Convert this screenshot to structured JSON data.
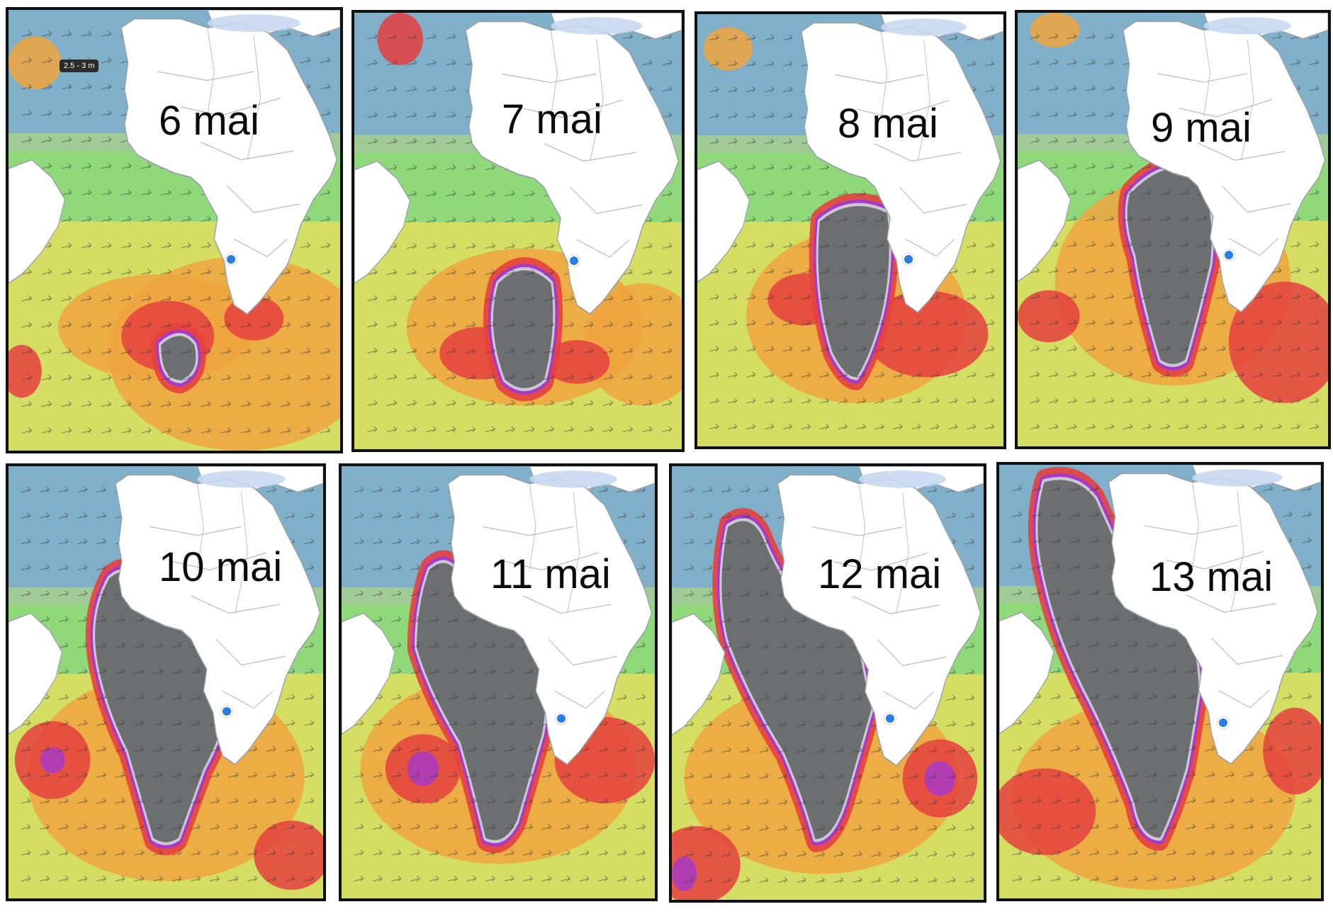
{
  "tooltip": {
    "text": "2.5 - 3 m"
  },
  "panels": [
    {
      "id": "p1",
      "label": "6 mai"
    },
    {
      "id": "p2",
      "label": "7 mai"
    },
    {
      "id": "p3",
      "label": "8 mai"
    },
    {
      "id": "p4",
      "label": "9 mai"
    },
    {
      "id": "p5",
      "label": "10 mai"
    },
    {
      "id": "p6",
      "label": "11 mai"
    },
    {
      "id": "p7",
      "label": "12 mai"
    },
    {
      "id": "p8",
      "label": "13 mai"
    }
  ],
  "colors": {
    "low": "#8aa8d8",
    "moderate": "#5ccf8e",
    "medium": "#b9e26b",
    "high": "#f1e05a",
    "higher": "#f0a540",
    "very_high": "#e5403e",
    "extreme": "#a838c6",
    "beyond_scale": "#6d6e70",
    "land": "#ffffff",
    "marker": "#2a7de1"
  }
}
